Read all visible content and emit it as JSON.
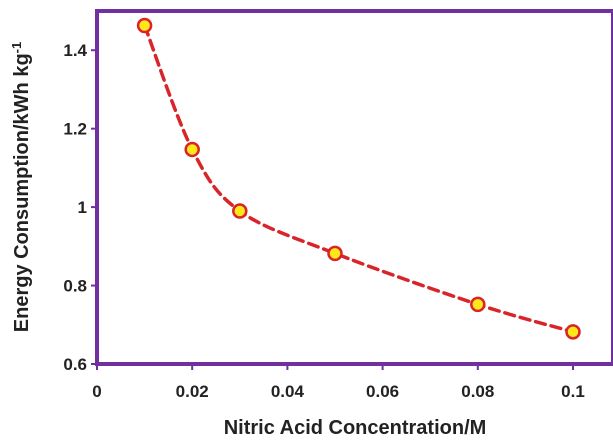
{
  "chart_data": {
    "type": "scatter",
    "title": "",
    "xlabel": "Nitric Acid Concentration/M",
    "ylabel": "Energy Consumption/kWh kg",
    "ylabel_superscript": "-1",
    "xlim": [
      0,
      0.1
    ],
    "ylim": [
      0.6,
      1.5
    ],
    "x_ticks": [
      0,
      0.02,
      0.04,
      0.06,
      0.08,
      0.1
    ],
    "x_tick_labels": [
      "0",
      "0.02",
      "0.04",
      "0.06",
      "0.08",
      "0.1"
    ],
    "y_ticks": [
      0.6,
      0.8,
      1.0,
      1.2,
      1.4
    ],
    "y_tick_labels": [
      "0.6",
      "0.8",
      "1",
      "1.2",
      "1.4"
    ],
    "grid": false,
    "legend": "none",
    "series": [
      {
        "x": [
          0.01,
          0.02,
          0.03,
          0.05,
          0.08,
          0.1
        ],
        "y": [
          1.463,
          1.147,
          0.99,
          0.882,
          0.752,
          0.682
        ],
        "marker": "circle",
        "marker_fill": "#FFE81A",
        "marker_edge": "#D9252A",
        "line_style": "dashed-smooth",
        "line_color": "#D9252A"
      }
    ],
    "frame_color": "#7030A0"
  }
}
